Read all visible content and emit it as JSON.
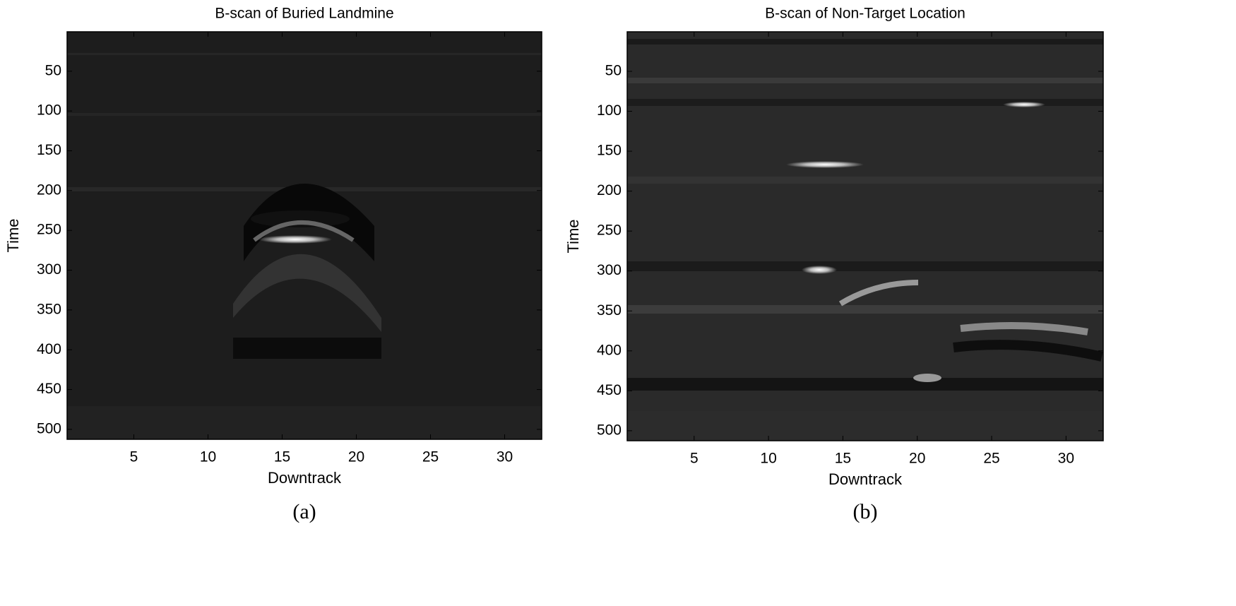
{
  "chart_data": [
    {
      "type": "heatmap",
      "title": "B-scan of Buried Landmine",
      "x_label": "Downtrack",
      "y_label": "Time",
      "caption": "(a)",
      "colormap": "gray",
      "y_reversed": true,
      "xlim": [
        0.5,
        32.5
      ],
      "xticks": [
        5,
        10,
        15,
        20,
        25,
        30
      ],
      "ylim": [
        0.5,
        512.5
      ],
      "yticks": [
        50,
        100,
        150,
        200,
        250,
        300,
        350,
        400,
        450,
        500
      ]
    },
    {
      "type": "heatmap",
      "title": "B-scan of Non-Target Location",
      "x_label": "Downtrack",
      "y_label": "Time",
      "caption": "(b)",
      "colormap": "gray",
      "y_reversed": true,
      "xlim": [
        0.5,
        32.5
      ],
      "xticks": [
        5,
        10,
        15,
        20,
        25,
        30
      ],
      "ylim": [
        0.5,
        512.5
      ],
      "yticks": [
        50,
        100,
        150,
        200,
        250,
        300,
        350,
        400,
        450,
        500
      ]
    }
  ]
}
